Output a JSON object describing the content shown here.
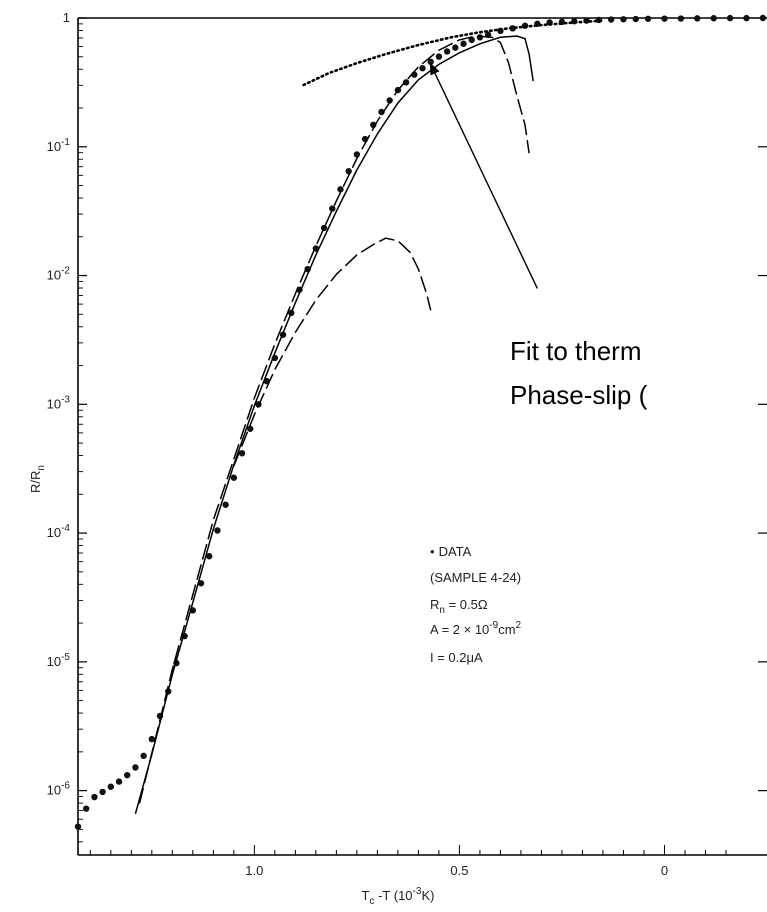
{
  "chart_data": {
    "type": "scatter",
    "x_axis": {
      "label_main": "T",
      "label_sub": "c",
      "label_rest": " -T (10",
      "label_sup": "-3",
      "label_end": "K)",
      "range": [
        1.43,
        -0.25
      ],
      "reversed": true,
      "ticks": [
        {
          "value": 1.0,
          "label": "1.0"
        },
        {
          "value": 0.5,
          "label": "0.5"
        },
        {
          "value": 0.0,
          "label": "0"
        }
      ]
    },
    "y_axis": {
      "label_main": "R/R",
      "label_sub": "n",
      "scale": "log",
      "range_log10": [
        -6.5,
        0
      ],
      "ticks": [
        {
          "exp": 0,
          "base": "1",
          "sup": ""
        },
        {
          "exp": -1,
          "base": "10",
          "sup": "-1"
        },
        {
          "exp": -2,
          "base": "10",
          "sup": "-2"
        },
        {
          "exp": -3,
          "base": "10",
          "sup": "-3"
        },
        {
          "exp": -4,
          "base": "10",
          "sup": "-4"
        },
        {
          "exp": -5,
          "base": "10",
          "sup": "-5"
        },
        {
          "exp": -6,
          "base": "10",
          "sup": "-6"
        }
      ]
    },
    "series": [
      {
        "style": "dots",
        "points": [
          [
            1.43,
            -6.28
          ],
          [
            1.41,
            -6.14
          ],
          [
            1.39,
            -6.05
          ],
          [
            1.37,
            -6.01
          ],
          [
            1.35,
            -5.97
          ],
          [
            1.33,
            -5.93
          ],
          [
            1.31,
            -5.88
          ],
          [
            1.29,
            -5.82
          ],
          [
            1.27,
            -5.73
          ],
          [
            1.25,
            -5.6
          ],
          [
            1.23,
            -5.42
          ],
          [
            1.21,
            -5.23
          ],
          [
            1.19,
            -5.01
          ],
          [
            1.17,
            -4.8
          ],
          [
            1.15,
            -4.6
          ],
          [
            1.13,
            -4.39
          ],
          [
            1.11,
            -4.18
          ],
          [
            1.09,
            -3.98
          ],
          [
            1.07,
            -3.78
          ],
          [
            1.05,
            -3.57
          ],
          [
            1.03,
            -3.38
          ],
          [
            1.01,
            -3.19
          ],
          [
            0.99,
            -3.0
          ],
          [
            0.97,
            -2.82
          ],
          [
            0.95,
            -2.64
          ],
          [
            0.93,
            -2.46
          ],
          [
            0.91,
            -2.29
          ],
          [
            0.89,
            -2.11
          ],
          [
            0.87,
            -1.95
          ],
          [
            0.85,
            -1.79
          ],
          [
            0.83,
            -1.63
          ],
          [
            0.81,
            -1.48
          ],
          [
            0.79,
            -1.33
          ],
          [
            0.77,
            -1.19
          ],
          [
            0.75,
            -1.06
          ],
          [
            0.73,
            -0.94
          ],
          [
            0.71,
            -0.83
          ],
          [
            0.69,
            -0.73
          ],
          [
            0.67,
            -0.64
          ],
          [
            0.65,
            -0.56
          ],
          [
            0.63,
            -0.5
          ],
          [
            0.61,
            -0.44
          ],
          [
            0.59,
            -0.39
          ],
          [
            0.57,
            -0.34
          ],
          [
            0.55,
            -0.3
          ],
          [
            0.53,
            -0.26
          ],
          [
            0.51,
            -0.23
          ],
          [
            0.49,
            -0.2
          ],
          [
            0.47,
            -0.17
          ],
          [
            0.45,
            -0.15
          ],
          [
            0.43,
            -0.13
          ],
          [
            0.4,
            -0.1
          ],
          [
            0.37,
            -0.08
          ],
          [
            0.34,
            -0.06
          ],
          [
            0.31,
            -0.045
          ],
          [
            0.28,
            -0.035
          ],
          [
            0.25,
            -0.03
          ],
          [
            0.22,
            -0.025
          ],
          [
            0.19,
            -0.02
          ],
          [
            0.16,
            -0.015
          ],
          [
            0.13,
            -0.012
          ],
          [
            0.1,
            -0.01
          ],
          [
            0.07,
            -0.008
          ],
          [
            0.04,
            -0.006
          ],
          [
            0.0,
            -0.005
          ],
          [
            -0.04,
            -0.004
          ],
          [
            -0.08,
            -0.003
          ],
          [
            -0.12,
            -0.002
          ],
          [
            -0.16,
            -0.001
          ],
          [
            -0.2,
            -0.001
          ],
          [
            -0.24,
            0.0
          ]
        ]
      },
      {
        "style": "solid",
        "points": [
          [
            1.29,
            -6.18
          ],
          [
            1.25,
            -5.72
          ],
          [
            1.2,
            -5.1
          ],
          [
            1.15,
            -4.54
          ],
          [
            1.1,
            -3.97
          ],
          [
            1.05,
            -3.47
          ],
          [
            1.0,
            -3.01
          ],
          [
            0.95,
            -2.6
          ],
          [
            0.9,
            -2.21
          ],
          [
            0.85,
            -1.84
          ],
          [
            0.8,
            -1.5
          ],
          [
            0.75,
            -1.18
          ],
          [
            0.7,
            -0.9
          ],
          [
            0.65,
            -0.66
          ],
          [
            0.6,
            -0.48
          ],
          [
            0.55,
            -0.36
          ],
          [
            0.5,
            -0.27
          ],
          [
            0.45,
            -0.2
          ],
          [
            0.4,
            -0.15
          ],
          [
            0.36,
            -0.14
          ],
          [
            0.34,
            -0.16
          ],
          [
            0.33,
            -0.28
          ],
          [
            0.32,
            -0.49
          ]
        ]
      },
      {
        "style": "long-dash",
        "points": [
          [
            1.28,
            -6.1
          ],
          [
            1.2,
            -5.06
          ],
          [
            1.1,
            -3.9
          ],
          [
            1.0,
            -2.95
          ],
          [
            0.95,
            -2.53
          ],
          [
            0.9,
            -2.14
          ],
          [
            0.85,
            -1.77
          ],
          [
            0.8,
            -1.42
          ],
          [
            0.75,
            -1.09
          ],
          [
            0.7,
            -0.8
          ],
          [
            0.65,
            -0.56
          ],
          [
            0.6,
            -0.38
          ],
          [
            0.55,
            -0.25
          ],
          [
            0.5,
            -0.17
          ],
          [
            0.46,
            -0.14
          ],
          [
            0.42,
            -0.15
          ],
          [
            0.4,
            -0.19
          ],
          [
            0.38,
            -0.35
          ],
          [
            0.36,
            -0.6
          ],
          [
            0.34,
            -0.83
          ],
          [
            0.33,
            -1.05
          ]
        ]
      },
      {
        "style": "long-dash",
        "points": [
          [
            1.05,
            -3.48
          ],
          [
            1.0,
            -3.08
          ],
          [
            0.95,
            -2.73
          ],
          [
            0.9,
            -2.44
          ],
          [
            0.85,
            -2.19
          ],
          [
            0.8,
            -1.99
          ],
          [
            0.75,
            -1.84
          ],
          [
            0.71,
            -1.76
          ],
          [
            0.68,
            -1.71
          ],
          [
            0.65,
            -1.73
          ],
          [
            0.62,
            -1.82
          ],
          [
            0.6,
            -1.95
          ],
          [
            0.58,
            -2.14
          ],
          [
            0.57,
            -2.27
          ]
        ]
      },
      {
        "style": "dotted",
        "points": [
          [
            0.88,
            -0.52
          ],
          [
            0.82,
            -0.43
          ],
          [
            0.75,
            -0.35
          ],
          [
            0.68,
            -0.28
          ],
          [
            0.6,
            -0.21
          ],
          [
            0.52,
            -0.15
          ],
          [
            0.45,
            -0.11
          ],
          [
            0.38,
            -0.08
          ],
          [
            0.3,
            -0.055
          ],
          [
            0.22,
            -0.035
          ],
          [
            0.15,
            -0.02
          ]
        ]
      }
    ],
    "legend": {
      "position": "middle",
      "bullet": "•",
      "line1": "DATA",
      "line2": "(SAMPLE 4-24)",
      "rn_main": "R",
      "rn_sub": "n",
      "rn_value": " = 0.5Ω",
      "area_main": "A = 2 × 10",
      "area_sup": "-9",
      "area_unit": "cm",
      "area_unit_sup": "2",
      "current": "I = 0.2μA"
    },
    "annotation": {
      "line1": "Fit to therm",
      "line2": "Phase-slip (",
      "arrow_from": [
        0.31,
        -2.1
      ],
      "arrow_to": [
        0.57,
        -0.36
      ]
    }
  }
}
